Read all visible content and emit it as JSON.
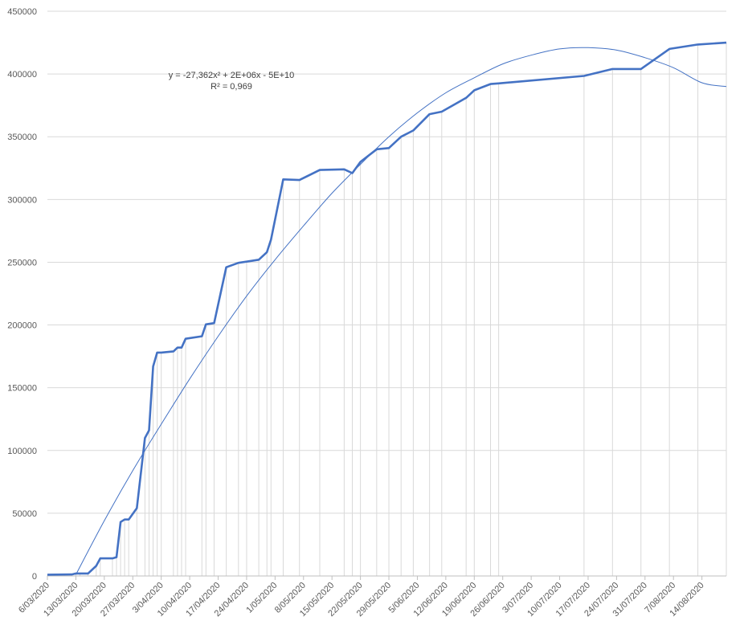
{
  "chart_data": {
    "type": "line",
    "title": "",
    "xlabel": "",
    "ylabel": "",
    "ylim": [
      0,
      450000
    ],
    "yticks": [
      "0",
      "50000",
      "100000",
      "150000",
      "200000",
      "250000",
      "300000",
      "350000",
      "400000",
      "450000"
    ],
    "xlim": [
      "2020-03-06",
      "2020-08-20"
    ],
    "xticks": [
      "6/03/2020",
      "13/03/2020",
      "20/03/2020",
      "27/03/2020",
      "3/04/2020",
      "10/04/2020",
      "17/04/2020",
      "24/04/2020",
      "1/05/2020",
      "8/05/2020",
      "15/05/2020",
      "22/05/2020",
      "29/05/2020",
      "5/06/2020",
      "12/06/2020",
      "19/06/2020",
      "26/06/2020",
      "3/07/2020",
      "10/07/2020",
      "17/07/2020",
      "24/07/2020",
      "31/07/2020",
      "7/08/2020",
      "14/08/2020"
    ],
    "grid": {
      "horizontal": true,
      "vertical_at_data_points": true
    },
    "legend": "none",
    "series": [
      {
        "name": "",
        "color": "#4472c4",
        "x": [
          "2020-03-06",
          "2020-03-12",
          "2020-03-13",
          "2020-03-14",
          "2020-03-16",
          "2020-03-18",
          "2020-03-19",
          "2020-03-22",
          "2020-03-23",
          "2020-03-24",
          "2020-03-25",
          "2020-03-26",
          "2020-03-28",
          "2020-03-30",
          "2020-03-31",
          "2020-04-01",
          "2020-04-02",
          "2020-04-03",
          "2020-04-06",
          "2020-04-07",
          "2020-04-08",
          "2020-04-09",
          "2020-04-13",
          "2020-04-14",
          "2020-04-16",
          "2020-04-19",
          "2020-04-22",
          "2020-04-24",
          "2020-04-27",
          "2020-04-29",
          "2020-04-30",
          "2020-05-03",
          "2020-05-07",
          "2020-05-12",
          "2020-05-18",
          "2020-05-20",
          "2020-05-22",
          "2020-05-26",
          "2020-05-29",
          "2020-06-01",
          "2020-06-04",
          "2020-06-08",
          "2020-06-11",
          "2020-06-17",
          "2020-06-19",
          "2020-06-23",
          "2020-06-25",
          "2020-07-16",
          "2020-07-23",
          "2020-07-30",
          "2020-08-06",
          "2020-08-13",
          "2020-08-20"
        ],
        "y": [
          1000,
          1200,
          2000,
          2000,
          2000,
          8000,
          14000,
          14000,
          15000,
          43000,
          45000,
          45000,
          54000,
          110000,
          116000,
          167000,
          178000,
          178000,
          179000,
          182000,
          182000,
          189000,
          191000,
          200500,
          201500,
          246000,
          249500,
          250500,
          252000,
          258000,
          268000,
          316000,
          315500,
          323500,
          324000,
          321000,
          330000,
          340000,
          341000,
          350000,
          355000,
          368000,
          370000,
          381000,
          387000,
          392000,
          392500,
          398500,
          404000,
          404000,
          420000,
          423500,
          425000
        ]
      },
      {
        "name": "",
        "type": "polynomial-trendline",
        "color": "#4472c4",
        "x": [
          "2020-03-13",
          "2020-03-20",
          "2020-03-27",
          "2020-04-03",
          "2020-04-10",
          "2020-04-17",
          "2020-04-24",
          "2020-05-01",
          "2020-05-08",
          "2020-05-15",
          "2020-05-22",
          "2020-05-29",
          "2020-06-05",
          "2020-06-12",
          "2020-06-19",
          "2020-06-26",
          "2020-07-03",
          "2020-07-10",
          "2020-07-17",
          "2020-07-24",
          "2020-07-31",
          "2020-08-07",
          "2020-08-14",
          "2020-08-20"
        ],
        "y": [
          1000,
          44000,
          84000,
          121000,
          157000,
          191000,
          223000,
          252000,
          279000,
          305000,
          328000,
          350000,
          369000,
          385000,
          397000,
          408000,
          415000,
          420000,
          421000,
          419000,
          413000,
          405000,
          393000,
          390000
        ]
      }
    ],
    "annotations": [
      {
        "text": "y = -27,362x² + 2E+06x - 5E+10"
      },
      {
        "text": "R² = 0,969"
      }
    ]
  }
}
